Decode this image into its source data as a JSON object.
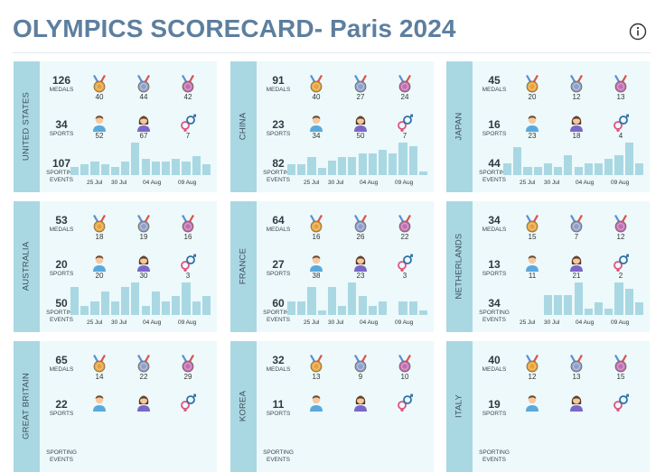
{
  "title": "OLYMPICS SCORECARD- Paris 2024",
  "info_icon": "info-icon",
  "labels": {
    "medals": "MEDALS",
    "sports": "SPORTS",
    "events": "SPORTING EVENTS"
  },
  "x_axis_labels": [
    "25 Jul",
    "30 Jul",
    "04 Aug",
    "09 Aug"
  ],
  "colors": {
    "band": "#a9d8e3",
    "card": "#edf9fb",
    "bar": "#a9d8e3",
    "title": "#5d7f9f"
  },
  "countries": [
    {
      "name": "UNITED STATES",
      "medals": "126",
      "gold": "40",
      "silver": "44",
      "bronze": "42",
      "sports": "34",
      "male": "52",
      "female": "67",
      "mixed": "7",
      "events": "107",
      "daily": [
        3,
        4,
        5,
        4,
        3,
        5,
        12,
        6,
        5,
        5,
        6,
        5,
        7,
        4
      ]
    },
    {
      "name": "CHINA",
      "medals": "91",
      "gold": "40",
      "silver": "27",
      "bronze": "24",
      "sports": "23",
      "male": "34",
      "female": "50",
      "mixed": "7",
      "events": "82",
      "daily": [
        3,
        3,
        5,
        2,
        4,
        5,
        5,
        6,
        6,
        7,
        6,
        9,
        8,
        1
      ]
    },
    {
      "name": "JAPAN",
      "medals": "45",
      "gold": "20",
      "silver": "12",
      "bronze": "13",
      "sports": "16",
      "male": "23",
      "female": "18",
      "mixed": "4",
      "events": "44",
      "daily": [
        3,
        7,
        2,
        2,
        3,
        2,
        5,
        2,
        3,
        3,
        4,
        5,
        8,
        3
      ]
    },
    {
      "name": "AUSTRALIA",
      "medals": "53",
      "gold": "18",
      "silver": "19",
      "bronze": "16",
      "sports": "20",
      "male": "20",
      "female": "30",
      "mixed": "3",
      "events": "50",
      "daily": [
        6,
        2,
        3,
        5,
        3,
        6,
        7,
        2,
        5,
        3,
        4,
        7,
        3,
        4
      ]
    },
    {
      "name": "FRANCE",
      "medals": "64",
      "gold": "16",
      "silver": "26",
      "bronze": "22",
      "sports": "27",
      "male": "38",
      "female": "23",
      "mixed": "3",
      "events": "60",
      "daily": [
        3,
        3,
        6,
        1,
        6,
        2,
        7,
        4,
        2,
        3,
        0,
        3,
        3,
        1
      ]
    },
    {
      "name": "NETHERLANDS",
      "medals": "34",
      "gold": "15",
      "silver": "7",
      "bronze": "12",
      "sports": "13",
      "male": "11",
      "female": "21",
      "mixed": "2",
      "events": "34",
      "daily": [
        0,
        0,
        0,
        0,
        3,
        3,
        3,
        5,
        1,
        2,
        1,
        5,
        4,
        2
      ]
    },
    {
      "name": "GREAT BRITAIN",
      "medals": "65",
      "gold": "14",
      "silver": "22",
      "bronze": "29",
      "sports": "22",
      "male": "",
      "female": "",
      "mixed": "",
      "events": "",
      "daily": []
    },
    {
      "name": "KOREA",
      "medals": "32",
      "gold": "13",
      "silver": "9",
      "bronze": "10",
      "sports": "11",
      "male": "",
      "female": "",
      "mixed": "",
      "events": "",
      "daily": []
    },
    {
      "name": "ITALY",
      "medals": "40",
      "gold": "12",
      "silver": "13",
      "bronze": "15",
      "sports": "19",
      "male": "",
      "female": "",
      "mixed": "",
      "events": "",
      "daily": []
    }
  ]
}
